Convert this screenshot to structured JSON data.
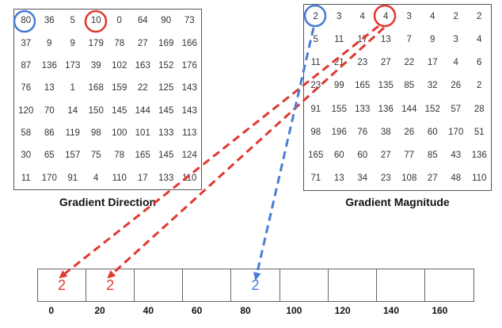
{
  "direction": {
    "title": "Gradient Direction",
    "rows": [
      [
        "80",
        "36",
        "5",
        "10",
        "0",
        "64",
        "90",
        "73"
      ],
      [
        "37",
        "9",
        "9",
        "179",
        "78",
        "27",
        "169",
        "166"
      ],
      [
        "87",
        "136",
        "173",
        "39",
        "102",
        "163",
        "152",
        "176"
      ],
      [
        "76",
        "13",
        "1",
        "168",
        "159",
        "22",
        "125",
        "143"
      ],
      [
        "120",
        "70",
        "14",
        "150",
        "145",
        "144",
        "145",
        "143"
      ],
      [
        "58",
        "86",
        "119",
        "98",
        "100",
        "101",
        "133",
        "113"
      ],
      [
        "30",
        "65",
        "157",
        "75",
        "78",
        "165",
        "145",
        "124"
      ],
      [
        "11",
        "170",
        "91",
        "4",
        "110",
        "17",
        "133",
        "110"
      ]
    ]
  },
  "magnitude": {
    "title": "Gradient Magnitude",
    "rows": [
      [
        "2",
        "3",
        "4",
        "4",
        "3",
        "4",
        "2",
        "2"
      ],
      [
        "5",
        "11",
        "17",
        "13",
        "7",
        "9",
        "3",
        "4"
      ],
      [
        "11",
        "21",
        "23",
        "27",
        "22",
        "17",
        "4",
        "6"
      ],
      [
        "23",
        "99",
        "165",
        "135",
        "85",
        "32",
        "26",
        "2"
      ],
      [
        "91",
        "155",
        "133",
        "136",
        "144",
        "152",
        "57",
        "28"
      ],
      [
        "98",
        "196",
        "76",
        "38",
        "26",
        "60",
        "170",
        "51"
      ],
      [
        "165",
        "60",
        "60",
        "27",
        "77",
        "85",
        "43",
        "136"
      ],
      [
        "71",
        "13",
        "34",
        "23",
        "108",
        "27",
        "48",
        "110"
      ]
    ]
  },
  "histogram": {
    "bins": [
      "0",
      "20",
      "40",
      "60",
      "80",
      "100",
      "120",
      "140",
      "160"
    ],
    "values": [
      "2",
      "2",
      "",
      "",
      "2",
      "",
      "",
      "",
      ""
    ],
    "value_colors": [
      "red",
      "red",
      "",
      "",
      "blue",
      "",
      "",
      "",
      ""
    ]
  },
  "colors": {
    "red": "#e0392f",
    "blue": "#4a7bd6"
  }
}
